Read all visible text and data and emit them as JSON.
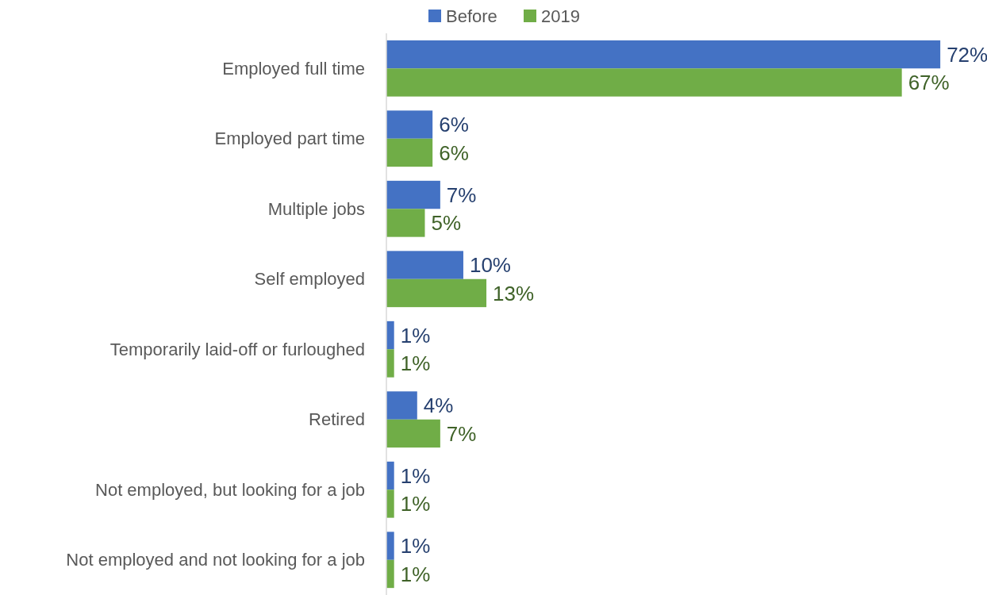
{
  "chart_data": {
    "type": "bar",
    "orientation": "horizontal",
    "legend": "top",
    "categories": [
      "Employed full time",
      "Employed part time",
      "Multiple jobs",
      "Self employed",
      "Temporarily laid-off or furloughed",
      "Retired",
      "Not employed, but looking for a job",
      "Not employed and not looking for a job"
    ],
    "series": [
      {
        "name": "Before",
        "color": "#4472c4",
        "values": [
          72,
          6,
          7,
          10,
          1,
          4,
          1,
          1
        ],
        "value_labels": [
          "72%",
          "6%",
          "7%",
          "10%",
          "1%",
          "4%",
          "1%",
          "1%"
        ]
      },
      {
        "name": "2019",
        "color": "#70ad47",
        "values": [
          67,
          6,
          5,
          13,
          1,
          7,
          1,
          1
        ],
        "value_labels": [
          "67%",
          "6%",
          "5%",
          "13%",
          "1%",
          "7%",
          "1%",
          "1%"
        ]
      }
    ]
  }
}
